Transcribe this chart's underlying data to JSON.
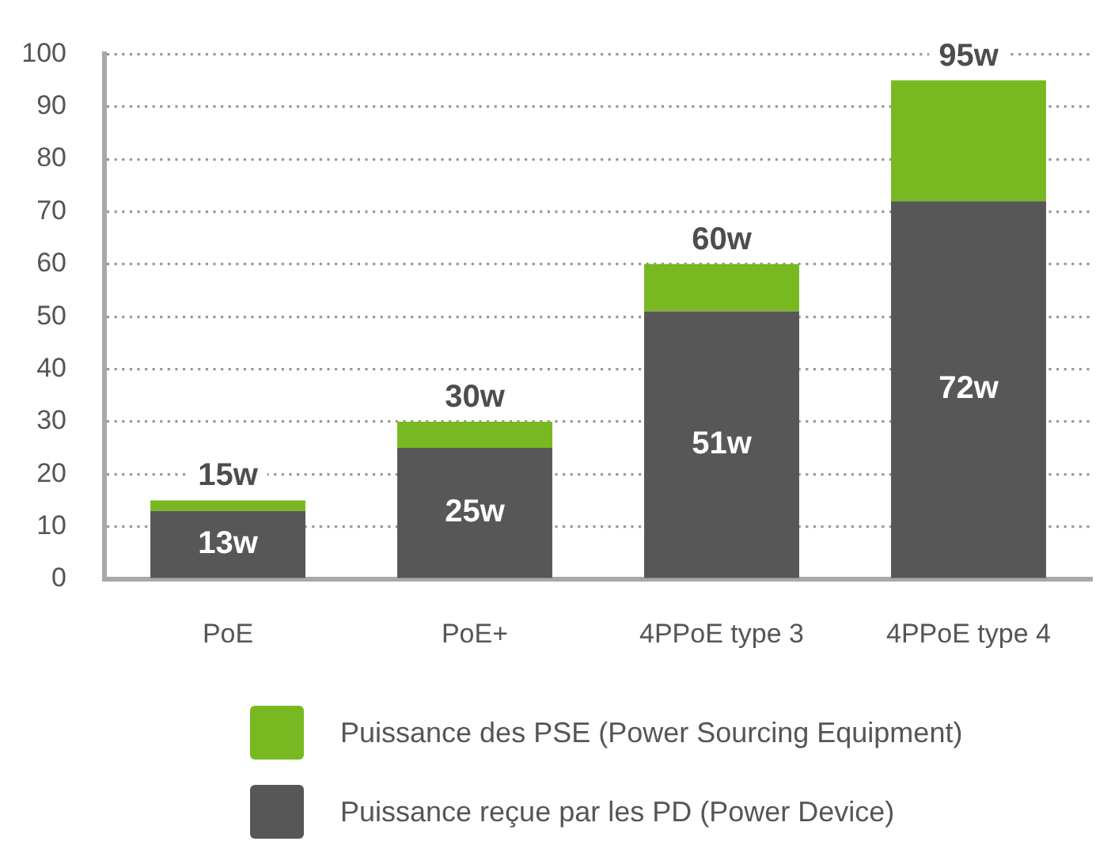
{
  "chart_data": {
    "type": "bar",
    "stacked": true,
    "categories": [
      "PoE",
      "PoE+",
      "4PPoE type 3",
      "4PPoE type 4"
    ],
    "series": [
      {
        "name": "Puissance reçue par les PD (Power Device)",
        "color": "#575757",
        "values": [
          13,
          25,
          51,
          72
        ],
        "value_labels": [
          "13w",
          "25w",
          "51w",
          "72w"
        ]
      },
      {
        "name": "Puissance des PSE (Power Sourcing Equipment)",
        "color": "#78b922",
        "values": [
          2,
          5,
          9,
          23
        ]
      }
    ],
    "totals": [
      "15w",
      "30w",
      "60w",
      "95w"
    ],
    "ylim": [
      0,
      100
    ],
    "yticks": [
      0,
      10,
      20,
      30,
      40,
      50,
      60,
      70,
      80,
      90,
      100
    ],
    "grid": "y",
    "legend": "bottom"
  }
}
